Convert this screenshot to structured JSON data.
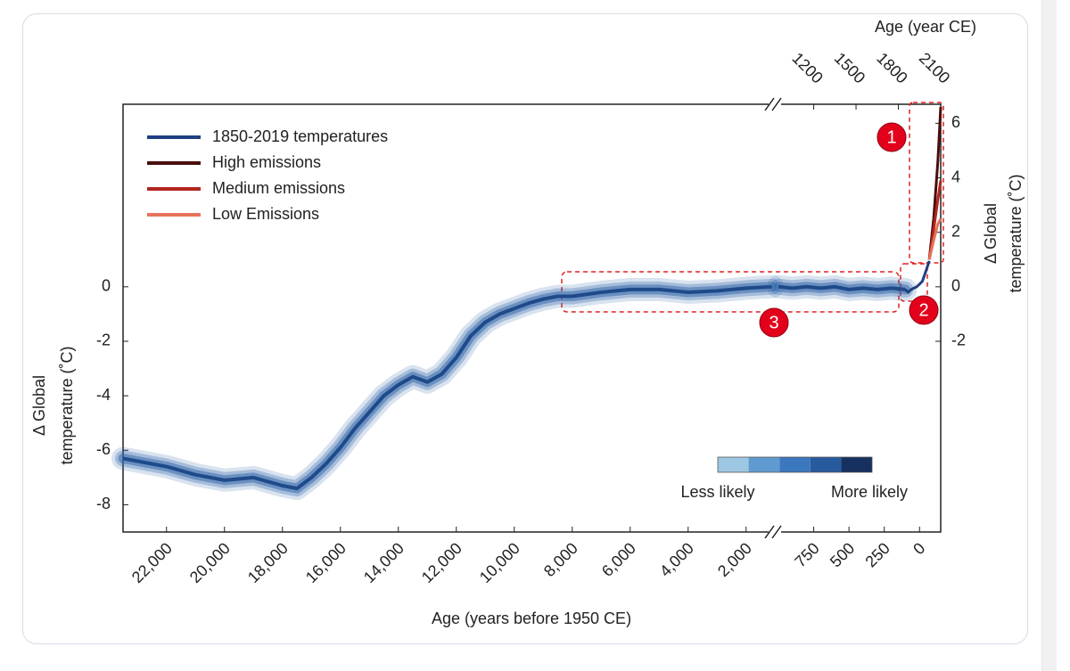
{
  "chart_data": {
    "type": "line",
    "top_axis_label": "Age (year CE)",
    "xlabel": "Age (years before 1950 CE)",
    "ylabel": [
      "Δ Global",
      "temperature (˚C)"
    ],
    "ylim": [
      -9,
      6.7
    ],
    "yticks": [
      -8,
      -6,
      -4,
      -2,
      0
    ],
    "y2ticks": [
      -2,
      0,
      2,
      4,
      6
    ],
    "panels": [
      {
        "xlim": [
          23500,
          1100
        ],
        "xticks": [
          {
            "value": 22000,
            "label": "22,000"
          },
          {
            "value": 20000,
            "label": "20,000"
          },
          {
            "value": 18000,
            "label": "18,000"
          },
          {
            "value": 16000,
            "label": "16,000"
          },
          {
            "value": 14000,
            "label": "14,000"
          },
          {
            "value": 12000,
            "label": "12,000"
          },
          {
            "value": 10000,
            "label": "10,000"
          },
          {
            "value": 8000,
            "label": "8,000"
          },
          {
            "value": 6000,
            "label": "6,000"
          },
          {
            "value": 4000,
            "label": "4,000"
          },
          {
            "value": 2000,
            "label": "2,000"
          }
        ]
      },
      {
        "xlim": [
          1000,
          -150
        ],
        "xticks": [
          750,
          500,
          250,
          0
        ],
        "x2ticks": [
          {
            "value": 750,
            "label": "1200"
          },
          {
            "value": 450,
            "label": "1500"
          },
          {
            "value": 150,
            "label": "1800"
          },
          {
            "value": -150,
            "label": "2100"
          }
        ]
      }
    ],
    "series": [
      {
        "color": "#2f64a8",
        "x": [
          23500,
          22000,
          21000,
          20000,
          19000,
          18000,
          17500,
          17000,
          16500,
          16000,
          15500,
          15000,
          14500,
          14000,
          13500,
          13000,
          12500,
          12000,
          11500,
          11000,
          10500,
          10000,
          9500,
          9000,
          8500,
          8000,
          7000,
          6000,
          5000,
          4000,
          3000,
          2000,
          1100,
          1000,
          900,
          800,
          700,
          600,
          500,
          400,
          300,
          200,
          100
        ],
        "values": [
          -6.3,
          -6.6,
          -6.9,
          -7.1,
          -7.0,
          -7.3,
          -7.4,
          -7.0,
          -6.5,
          -5.9,
          -5.2,
          -4.6,
          -4.0,
          -3.6,
          -3.3,
          -3.5,
          -3.2,
          -2.6,
          -1.8,
          -1.3,
          -1.0,
          -0.8,
          -0.6,
          -0.45,
          -0.35,
          -0.35,
          -0.2,
          -0.1,
          -0.1,
          -0.2,
          -0.15,
          -0.05,
          0.0,
          0.0,
          -0.05,
          0.0,
          -0.05,
          0.0,
          -0.1,
          -0.05,
          -0.1,
          -0.05,
          -0.1
        ]
      },
      {
        "name": "1850-2019 temperatures",
        "color": "#1f3f80",
        "x": [
          100,
          80,
          60,
          40,
          20,
          0,
          -20,
          -40,
          -69
        ],
        "values": [
          -0.1,
          -0.2,
          -0.1,
          -0.05,
          0.0,
          0.1,
          0.2,
          0.5,
          0.95
        ]
      },
      {
        "name": "High emissions",
        "color": "#4a0d0d",
        "x": [
          -69,
          -100,
          -130,
          -150
        ],
        "values": [
          1.0,
          2.5,
          4.6,
          6.6
        ]
      },
      {
        "name": "Medium emissions",
        "color": "#b3261e",
        "x": [
          -69,
          -100,
          -130,
          -150
        ],
        "values": [
          1.0,
          2.1,
          3.2,
          3.9
        ]
      },
      {
        "name": "Low Emissions",
        "color": "#e8735a",
        "x": [
          -69,
          -100,
          -130,
          -150
        ],
        "values": [
          1.0,
          1.7,
          2.3,
          2.5
        ]
      }
    ],
    "likelihood_colors": [
      "#9ec7e3",
      "#5f9bd0",
      "#3b78bd",
      "#285a9e",
      "#16305f"
    ],
    "likelihood_labels": [
      "Less likely",
      "More likely"
    ],
    "annotations": [
      "1",
      "2",
      "3"
    ]
  }
}
